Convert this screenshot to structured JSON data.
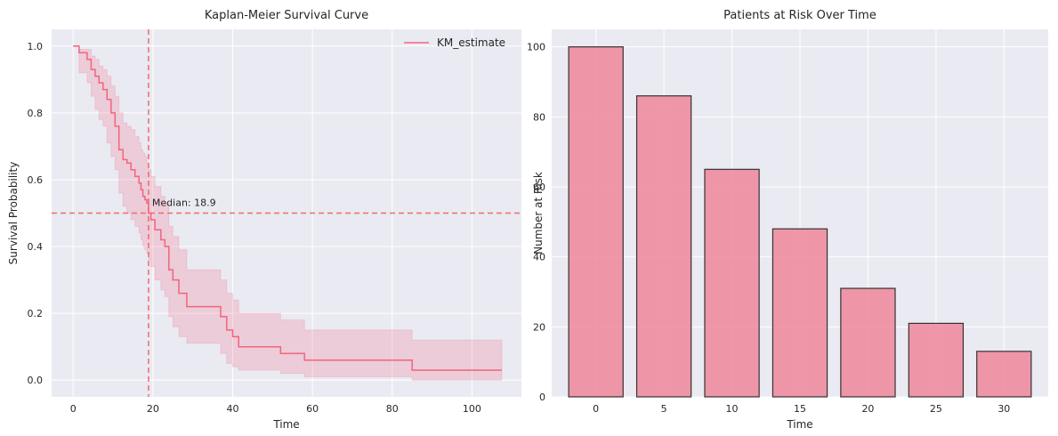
{
  "colors": {
    "plot_bg": "#eaeaf2",
    "grid": "#ffffff",
    "km_line": "#f2657c",
    "km_band": "#f2657c",
    "median_line": "#f26a6a",
    "bar_fill": "#f08ca0",
    "bar_edge": "#333333",
    "text": "#262626",
    "legend_bg": "#eaeaf2"
  },
  "chart_data": [
    {
      "type": "line",
      "title": "Kaplan-Meier Survival Curve",
      "xlabel": "Time",
      "ylabel": "Survival Probability",
      "xlim": [
        -5.4,
        112.4
      ],
      "ylim": [
        -0.05,
        1.05
      ],
      "xticks": [
        0,
        20,
        40,
        60,
        80,
        100
      ],
      "yticks": [
        0.0,
        0.2,
        0.4,
        0.6,
        0.8,
        1.0
      ],
      "xtick_labels": [
        "0",
        "20",
        "40",
        "60",
        "80",
        "100"
      ],
      "ytick_labels": [
        "0.0",
        "0.2",
        "0.4",
        "0.6",
        "0.8",
        "1.0"
      ],
      "grid": true,
      "legend": {
        "placement": "upper-right",
        "entries": [
          "KM_estimate"
        ]
      },
      "series": [
        {
          "name": "KM_estimate",
          "step": "post",
          "x": [
            0,
            1.5,
            3.5,
            4.5,
            5.5,
            6.5,
            7.5,
            8.5,
            9.5,
            10.5,
            11.5,
            12.5,
            13.5,
            14.5,
            15.5,
            16.5,
            17.0,
            17.5,
            18.0,
            18.5,
            18.9,
            19.5,
            20.5,
            22.0,
            23.0,
            24.0,
            25.0,
            26.5,
            28.5,
            37.0,
            38.5,
            40.0,
            41.5,
            52.0,
            58.0,
            85.0,
            107.5
          ],
          "survival": [
            1.0,
            0.98,
            0.96,
            0.93,
            0.91,
            0.89,
            0.87,
            0.84,
            0.8,
            0.76,
            0.69,
            0.66,
            0.65,
            0.63,
            0.61,
            0.59,
            0.57,
            0.55,
            0.54,
            0.53,
            0.5,
            0.48,
            0.45,
            0.42,
            0.4,
            0.33,
            0.3,
            0.26,
            0.22,
            0.19,
            0.15,
            0.13,
            0.1,
            0.08,
            0.06,
            0.03,
            0.03
          ],
          "ci_lower": [
            1.0,
            0.92,
            0.89,
            0.85,
            0.81,
            0.78,
            0.76,
            0.71,
            0.67,
            0.63,
            0.56,
            0.52,
            0.5,
            0.48,
            0.46,
            0.44,
            0.42,
            0.4,
            0.39,
            0.38,
            0.36,
            0.34,
            0.3,
            0.27,
            0.25,
            0.19,
            0.16,
            0.13,
            0.11,
            0.08,
            0.05,
            0.04,
            0.03,
            0.02,
            0.01,
            0.0,
            0.0
          ],
          "ci_upper": [
            1.0,
            0.99,
            0.99,
            0.97,
            0.96,
            0.94,
            0.93,
            0.91,
            0.88,
            0.85,
            0.8,
            0.77,
            0.76,
            0.75,
            0.73,
            0.71,
            0.69,
            0.68,
            0.67,
            0.65,
            0.63,
            0.61,
            0.58,
            0.55,
            0.53,
            0.46,
            0.43,
            0.39,
            0.33,
            0.3,
            0.26,
            0.24,
            0.2,
            0.18,
            0.15,
            0.12,
            0.12
          ]
        }
      ],
      "median": {
        "x": 18.9,
        "y": 0.5,
        "label": "Median: 18.9"
      }
    },
    {
      "type": "bar",
      "title": "Patients at Risk Over Time",
      "xlabel": "Time",
      "ylabel": "Number at Risk",
      "categories": [
        "0",
        "5",
        "10",
        "15",
        "20",
        "25",
        "30"
      ],
      "values": [
        100,
        86,
        65,
        48,
        31,
        21,
        13
      ],
      "ylim": [
        0,
        105
      ],
      "yticks": [
        0,
        20,
        40,
        60,
        80,
        100
      ],
      "ytick_labels": [
        "0",
        "20",
        "40",
        "60",
        "80",
        "100"
      ],
      "grid": true
    }
  ]
}
